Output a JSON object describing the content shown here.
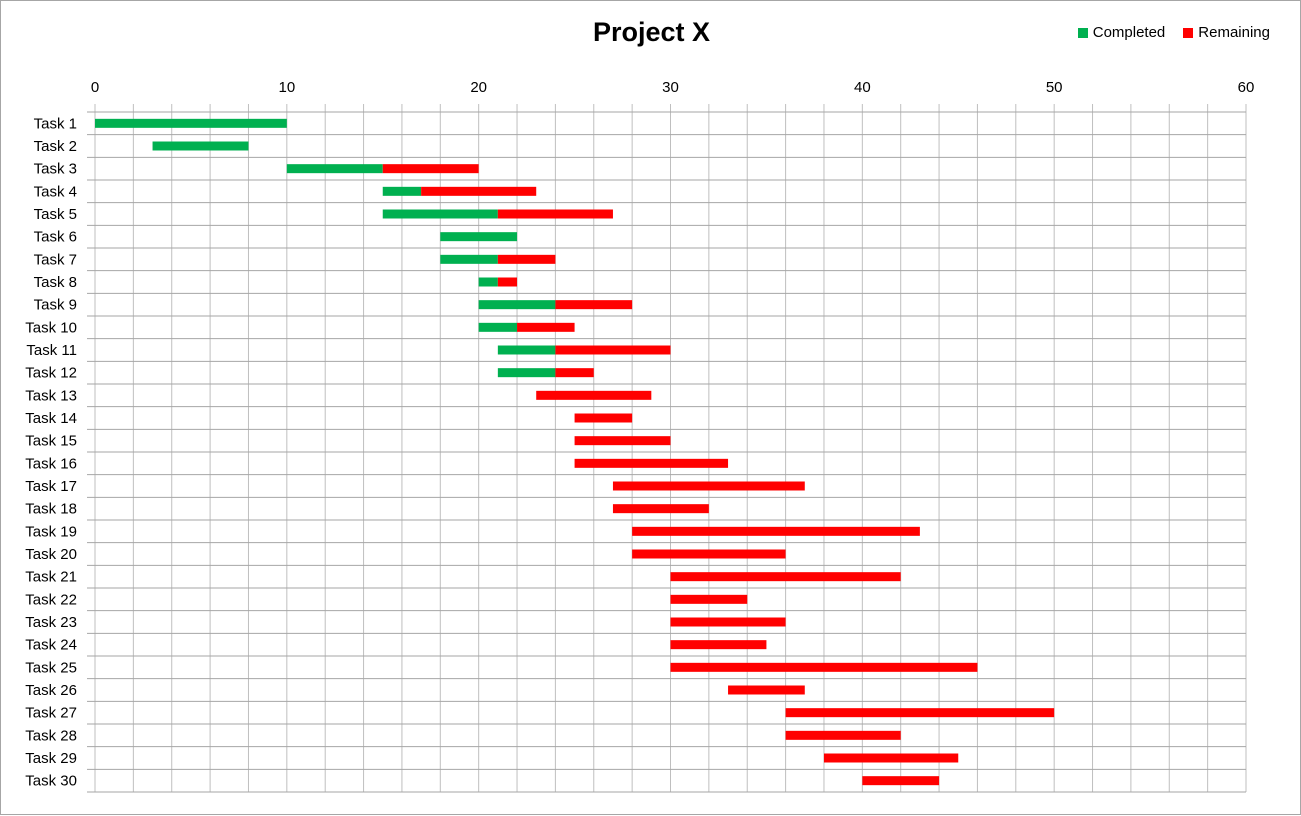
{
  "chart_data": {
    "type": "bar",
    "orientation": "horizontal-stacked-gantt",
    "title": "Project X",
    "legend_position": "top-right",
    "grid": true,
    "xlim": [
      0,
      60
    ],
    "xticks": [
      0,
      10,
      20,
      30,
      40,
      50,
      60
    ],
    "categories": [
      "Task 1",
      "Task 2",
      "Task 3",
      "Task 4",
      "Task 5",
      "Task 6",
      "Task 7",
      "Task 8",
      "Task 9",
      "Task 10",
      "Task 11",
      "Task 12",
      "Task 13",
      "Task 14",
      "Task 15",
      "Task 16",
      "Task 17",
      "Task 18",
      "Task 19",
      "Task 20",
      "Task 21",
      "Task 22",
      "Task 23",
      "Task 24",
      "Task 25",
      "Task 26",
      "Task 27",
      "Task 28",
      "Task 29",
      "Task 30"
    ],
    "start": [
      0,
      3,
      10,
      15,
      15,
      18,
      18,
      20,
      20,
      20,
      21,
      21,
      23,
      25,
      25,
      25,
      27,
      27,
      28,
      28,
      30,
      30,
      30,
      30,
      30,
      33,
      36,
      36,
      38,
      40
    ],
    "series": [
      {
        "name": "Completed",
        "color": "#00b050",
        "values": [
          10,
          5,
          5,
          2,
          6,
          4,
          3,
          1,
          4,
          2,
          3,
          3,
          0,
          0,
          0,
          0,
          0,
          0,
          0,
          0,
          0,
          0,
          0,
          0,
          0,
          0,
          0,
          0,
          0,
          0
        ]
      },
      {
        "name": "Remaining",
        "color": "#ff0000",
        "values": [
          0,
          0,
          5,
          6,
          6,
          0,
          3,
          1,
          4,
          3,
          6,
          2,
          6,
          3,
          5,
          8,
          10,
          5,
          15,
          8,
          12,
          4,
          6,
          5,
          16,
          4,
          14,
          6,
          7,
          4
        ]
      }
    ]
  }
}
